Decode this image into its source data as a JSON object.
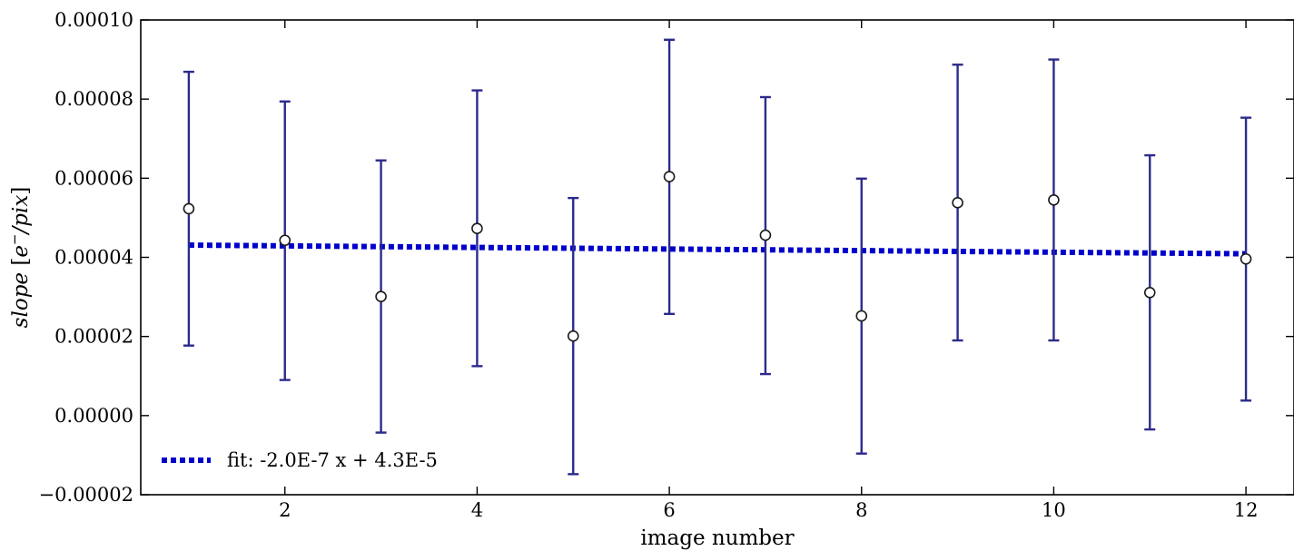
{
  "chart_data": {
    "type": "scatter",
    "title": "",
    "xlabel": "image number",
    "ylabel_parts": {
      "italic_1": "slope",
      "bracket_open": " [",
      "italic_2": "e",
      "superscript": "−",
      "italic_3": "/pix",
      "bracket_close": "]"
    },
    "xlim": [
      0.5,
      12.5
    ],
    "ylim": [
      -2e-05,
      0.0001
    ],
    "xticks": [
      2,
      4,
      6,
      8,
      10,
      12
    ],
    "xtick_labels": [
      "2",
      "4",
      "6",
      "8",
      "10",
      "12"
    ],
    "yticks": [
      -2e-05,
      0,
      2e-05,
      4e-05,
      6e-05,
      8e-05,
      0.0001
    ],
    "ytick_labels": [
      "−0.00002",
      "0.00000",
      "0.00002",
      "0.00004",
      "0.00006",
      "0.00008",
      "0.00010"
    ],
    "grid": false,
    "series": [
      {
        "kind": "errorbar",
        "x": [
          1,
          2,
          3,
          4,
          5,
          6,
          7,
          8,
          9,
          10,
          11,
          12
        ],
        "y": [
          5.23e-05,
          4.43e-05,
          3.01e-05,
          4.73e-05,
          2.01e-05,
          6.04e-05,
          4.56e-05,
          2.52e-05,
          5.38e-05,
          5.45e-05,
          3.11e-05,
          3.96e-05
        ],
        "yerr_upper": [
          8.69e-05,
          7.94e-05,
          6.45e-05,
          8.22e-05,
          5.5e-05,
          9.5e-05,
          8.05e-05,
          5.99e-05,
          8.87e-05,
          9e-05,
          6.58e-05,
          7.53e-05
        ],
        "yerr_lower": [
          1.77e-05,
          9e-06,
          -4.3e-06,
          1.25e-05,
          -1.48e-05,
          2.57e-05,
          1.05e-05,
          -9.6e-06,
          1.9e-05,
          1.9e-05,
          -3.5e-06,
          3.8e-06
        ],
        "marker": "open-circle",
        "color": "#2b2b8c"
      },
      {
        "kind": "fit-line",
        "name": "fit: -2.0E-7 x + 4.3E-5",
        "slope": -2e-07,
        "intercept": 4.33e-05,
        "x_range": [
          1,
          12
        ],
        "style": "dotted",
        "color": "#0000cc"
      }
    ],
    "legend": {
      "placement": "lower-left",
      "entries": [
        "fit: -2.0E-7 x + 4.3E-5"
      ]
    }
  }
}
